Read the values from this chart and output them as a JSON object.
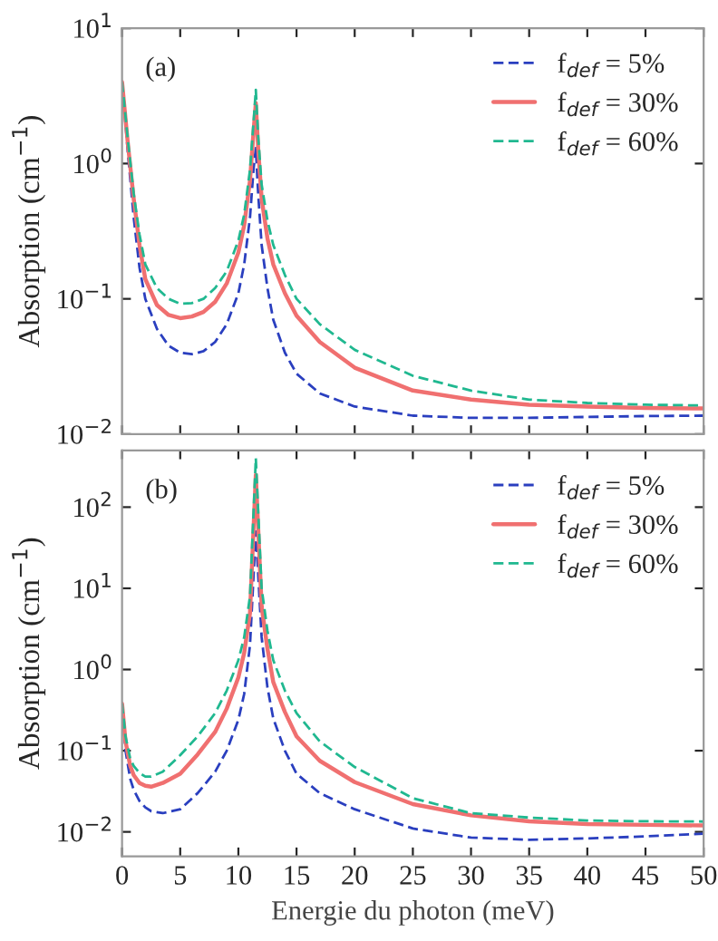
{
  "chart_data": [
    {
      "type": "line",
      "ylabel": "Absorption (cm$^{−1}$)",
      "annotations": [
        "(a)"
      ],
      "log": "y",
      "xlim": [
        0,
        50
      ],
      "ylim": [
        0.01,
        10
      ],
      "xticks": [
        0,
        5,
        10,
        15,
        20,
        25,
        30,
        35,
        40,
        45,
        50
      ],
      "yticks": [
        {
          "value": 0.01,
          "label": "10$^{−2}$"
        },
        {
          "value": 0.1,
          "label": "10$^{−1}$"
        },
        {
          "value": 1,
          "label": "10$^{0}$"
        },
        {
          "value": 10,
          "label": "10$^{1}$"
        }
      ],
      "tick_labels": "y",
      "grid": false,
      "legend": "top right",
      "x": [
        0,
        0.5,
        1,
        1.5,
        2,
        3,
        4,
        5,
        6,
        7,
        8,
        9,
        10,
        10.5,
        11,
        11.3,
        11.5,
        11.7,
        12,
        12.5,
        13,
        14,
        15,
        17,
        20,
        25,
        30,
        35,
        40,
        45,
        50
      ],
      "series": [
        {
          "name": "f$_{def}$ = 5%",
          "color": "#2a3fbf",
          "line_style": "dashed",
          "values": [
            4.0,
            1.2,
            0.4,
            0.17,
            0.1,
            0.06,
            0.045,
            0.04,
            0.039,
            0.041,
            0.048,
            0.065,
            0.11,
            0.18,
            0.4,
            0.9,
            1.3,
            0.6,
            0.25,
            0.12,
            0.07,
            0.04,
            0.028,
            0.02,
            0.016,
            0.0137,
            0.0132,
            0.0132,
            0.0134,
            0.0136,
            0.0137
          ]
        },
        {
          "name": "f$_{def}$ = 30%",
          "color": "#f07070",
          "line_style": "solid",
          "values": [
            4.0,
            1.4,
            0.55,
            0.25,
            0.14,
            0.09,
            0.076,
            0.072,
            0.074,
            0.08,
            0.095,
            0.13,
            0.22,
            0.35,
            0.75,
            1.7,
            2.8,
            1.3,
            0.55,
            0.28,
            0.18,
            0.11,
            0.075,
            0.048,
            0.031,
            0.021,
            0.018,
            0.0165,
            0.016,
            0.0156,
            0.0155
          ]
        },
        {
          "name": "f$_{def}$ = 60%",
          "color": "#20b890",
          "line_style": "dashed",
          "values": [
            4.0,
            1.5,
            0.6,
            0.3,
            0.18,
            0.12,
            0.1,
            0.092,
            0.093,
            0.1,
            0.12,
            0.16,
            0.27,
            0.42,
            0.9,
            2.0,
            3.5,
            1.6,
            0.7,
            0.38,
            0.25,
            0.15,
            0.1,
            0.065,
            0.042,
            0.027,
            0.021,
            0.018,
            0.017,
            0.0165,
            0.0163
          ]
        }
      ]
    },
    {
      "type": "line",
      "xlabel": "Energie du photon (meV)",
      "ylabel": "Absorption (cm$^{−1}$)",
      "annotations": [
        "(b)"
      ],
      "log": "y",
      "xlim": [
        0,
        50
      ],
      "ylim": [
        0.005,
        500
      ],
      "xticks": [
        0,
        5,
        10,
        15,
        20,
        25,
        30,
        35,
        40,
        45,
        50
      ],
      "yticks": [
        {
          "value": 0.01,
          "label": "10$^{−2}$"
        },
        {
          "value": 0.1,
          "label": "10$^{−1}$"
        },
        {
          "value": 1,
          "label": "10$^{0}$"
        },
        {
          "value": 10,
          "label": "10$^{1}$"
        },
        {
          "value": 100,
          "label": "10$^{2}$"
        }
      ],
      "grid": false,
      "legend": "top right",
      "x": [
        0,
        0.3,
        0.7,
        1,
        1.5,
        2,
        2.5,
        3.5,
        5,
        6.5,
        8,
        9,
        10,
        10.5,
        11,
        11.5,
        12,
        12.5,
        13,
        14,
        15,
        17,
        20,
        25,
        30,
        35,
        40,
        45,
        50
      ],
      "series": [
        {
          "name": "f$_{def}$ = 5%",
          "color": "#2a3fbf",
          "line_style": "dashed",
          "values": [
            0.38,
            0.1,
            0.045,
            0.033,
            0.024,
            0.02,
            0.018,
            0.017,
            0.019,
            0.03,
            0.055,
            0.1,
            0.24,
            0.5,
            2,
            50,
            2.5,
            0.6,
            0.25,
            0.1,
            0.052,
            0.03,
            0.019,
            0.011,
            0.0085,
            0.008,
            0.0083,
            0.0088,
            0.0095
          ]
        },
        {
          "name": "f$_{def}$ = 30%",
          "color": "#f07070",
          "line_style": "solid",
          "values": [
            0.38,
            0.13,
            0.065,
            0.05,
            0.04,
            0.037,
            0.036,
            0.04,
            0.052,
            0.09,
            0.17,
            0.33,
            0.8,
            1.6,
            5,
            250,
            6,
            1.8,
            0.7,
            0.3,
            0.15,
            0.075,
            0.041,
            0.022,
            0.016,
            0.0135,
            0.0125,
            0.0122,
            0.012
          ]
        },
        {
          "name": "f$_{def}$ = 60%",
          "color": "#20b890",
          "line_style": "dashed",
          "values": [
            0.38,
            0.15,
            0.08,
            0.065,
            0.053,
            0.048,
            0.048,
            0.055,
            0.088,
            0.15,
            0.29,
            0.55,
            1.3,
            2.5,
            8,
            400,
            10,
            3,
            1.3,
            0.55,
            0.29,
            0.13,
            0.063,
            0.026,
            0.017,
            0.015,
            0.0138,
            0.0135,
            0.0134
          ]
        }
      ]
    }
  ]
}
